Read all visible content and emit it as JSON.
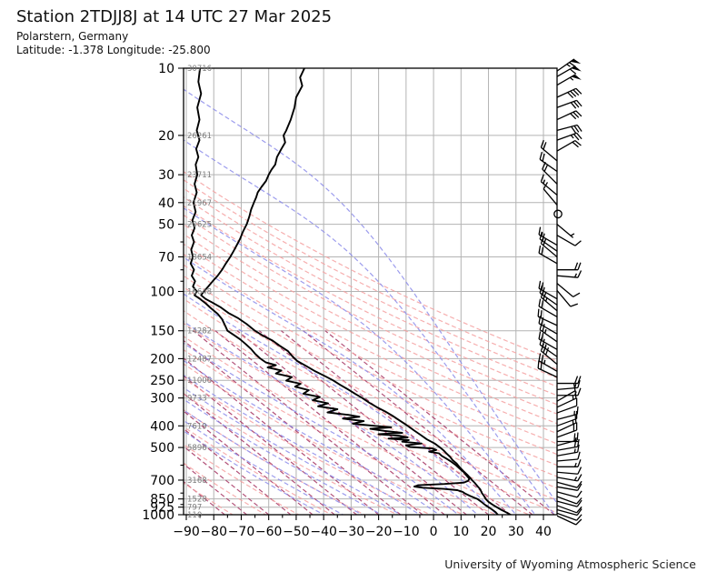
{
  "header": {
    "title": "Station 2TDJJ8J at 14 UTC 27 Mar 2025",
    "station_line": "Polarstern, Germany",
    "coords_line": "Latitude: -1.378 Longitude: -25.800"
  },
  "footer": {
    "credit": "University of Wyoming Atmospheric Science"
  },
  "chart_data": {
    "type": "line",
    "title": "Station 2TDJJ8J at 14 UTC 27 Mar 2025",
    "x_axis": {
      "unit": "degC",
      "range": [
        -90.99,
        45
      ],
      "ticks": [
        -90,
        -80,
        -70,
        -60,
        -50,
        -40,
        -30,
        -20,
        -10,
        0,
        10,
        20,
        30,
        40
      ],
      "tick_labels": [
        "−90",
        "−80",
        "−70",
        "−60",
        "−50",
        "−40",
        "−30",
        "−20",
        "−10",
        "0",
        "10",
        "20",
        "30",
        "40"
      ],
      "minor_step": 5
    },
    "y_axis": {
      "scale": "log",
      "unit": "hPa",
      "range": [
        10,
        1050
      ],
      "levels": [
        {
          "p": 10,
          "alt": "30716"
        },
        {
          "p": 20,
          "alt": "26261"
        },
        {
          "p": 30,
          "alt": "23711"
        },
        {
          "p": 40,
          "alt": "21967"
        },
        {
          "p": 50,
          "alt": "20625"
        },
        {
          "p": 70,
          "alt": "18654"
        },
        {
          "p": 100,
          "alt": "16648"
        },
        {
          "p": 150,
          "alt": "14282"
        },
        {
          "p": 200,
          "alt": "12487"
        },
        {
          "p": 250,
          "alt": "11006"
        },
        {
          "p": 300,
          "alt": "9733"
        },
        {
          "p": 400,
          "alt": "7619"
        },
        {
          "p": 500,
          "alt": "5896"
        },
        {
          "p": 700,
          "alt": "3168"
        },
        {
          "p": 850,
          "alt": "1528"
        },
        {
          "p": 925,
          "alt": "797"
        },
        {
          "p": 1000,
          "alt": "110"
        }
      ],
      "minor_ticks": [
        60,
        80,
        90,
        600,
        800,
        900
      ]
    },
    "colors": {
      "grid": "#b3b3b3",
      "axis": "#000000",
      "temperature": "#000000",
      "dewpoint": "#000000",
      "dry_adiabat": "#f4a0a0",
      "moist_adiabat": "#8b8bea",
      "aux_line": "#a83c68"
    },
    "series": [
      {
        "name": "temperature",
        "color": "#000000",
        "points": [
          [
            10,
            -47
          ],
          [
            11,
            -48.6
          ],
          [
            12,
            -47.8
          ],
          [
            13.5,
            -50
          ],
          [
            15,
            -50.6
          ],
          [
            17,
            -52
          ],
          [
            19,
            -53.6
          ],
          [
            20,
            -54.6
          ],
          [
            21.5,
            -54
          ],
          [
            23,
            -55.4
          ],
          [
            25,
            -57
          ],
          [
            27,
            -57.6
          ],
          [
            28.5,
            -59
          ],
          [
            30,
            -60
          ],
          [
            32,
            -61
          ],
          [
            34,
            -62.6
          ],
          [
            36,
            -64
          ],
          [
            38,
            -64.6
          ],
          [
            40,
            -65.4
          ],
          [
            43,
            -66.4
          ],
          [
            46,
            -67
          ],
          [
            50,
            -68
          ],
          [
            54,
            -69.4
          ],
          [
            58,
            -70.4
          ],
          [
            62,
            -71.6
          ],
          [
            66,
            -72.8
          ],
          [
            70,
            -74
          ],
          [
            75,
            -75.6
          ],
          [
            80,
            -77
          ],
          [
            85,
            -78.6
          ],
          [
            90,
            -80.4
          ],
          [
            95,
            -82
          ],
          [
            100,
            -83.6
          ],
          [
            104,
            -84.6
          ],
          [
            108,
            -83
          ],
          [
            112,
            -80.6
          ],
          [
            118,
            -77.4
          ],
          [
            125,
            -74.6
          ],
          [
            132,
            -71
          ],
          [
            140,
            -68
          ],
          [
            150,
            -65
          ],
          [
            158,
            -62
          ],
          [
            166,
            -58.6
          ],
          [
            175,
            -56
          ],
          [
            185,
            -53
          ],
          [
            195,
            -51.4
          ],
          [
            205,
            -49.6
          ],
          [
            215,
            -46.6
          ],
          [
            228,
            -43
          ],
          [
            240,
            -39.4
          ],
          [
            250,
            -36.6
          ],
          [
            262,
            -34
          ],
          [
            275,
            -31
          ],
          [
            288,
            -28.4
          ],
          [
            300,
            -26
          ],
          [
            315,
            -23.4
          ],
          [
            330,
            -20.6
          ],
          [
            345,
            -17.6
          ],
          [
            360,
            -15
          ],
          [
            378,
            -12.4
          ],
          [
            400,
            -9.4
          ],
          [
            420,
            -7
          ],
          [
            440,
            -4.6
          ],
          [
            460,
            -2.4
          ],
          [
            480,
            0.4
          ],
          [
            500,
            2.4
          ],
          [
            515,
            3.6
          ],
          [
            530,
            4.6
          ],
          [
            550,
            6
          ],
          [
            570,
            7
          ],
          [
            590,
            8.4
          ],
          [
            615,
            9.6
          ],
          [
            640,
            11
          ],
          [
            665,
            12.4
          ],
          [
            690,
            13.6
          ],
          [
            700,
            14
          ],
          [
            720,
            15
          ],
          [
            745,
            16
          ],
          [
            770,
            17
          ],
          [
            800,
            17.6
          ],
          [
            825,
            18.4
          ],
          [
            850,
            19
          ],
          [
            875,
            20
          ],
          [
            900,
            21.4
          ],
          [
            925,
            23
          ],
          [
            950,
            24.6
          ],
          [
            975,
            26.4
          ],
          [
            1000,
            28
          ],
          [
            1008,
            28.6
          ]
        ]
      },
      {
        "name": "dewpoint",
        "color": "#000000",
        "points": [
          [
            10,
            -85
          ],
          [
            11.5,
            -85.6
          ],
          [
            13,
            -84.6
          ],
          [
            15,
            -86
          ],
          [
            17,
            -85.2
          ],
          [
            19,
            -86.2
          ],
          [
            21,
            -85.2
          ],
          [
            23,
            -86.4
          ],
          [
            25,
            -85.6
          ],
          [
            27,
            -86.6
          ],
          [
            30,
            -86
          ],
          [
            33,
            -87
          ],
          [
            36,
            -86.2
          ],
          [
            40,
            -87.4
          ],
          [
            44,
            -86.6
          ],
          [
            48,
            -87.8
          ],
          [
            52,
            -87
          ],
          [
            56,
            -88
          ],
          [
            60,
            -87.2
          ],
          [
            65,
            -88.2
          ],
          [
            70,
            -87.6
          ],
          [
            75,
            -88.4
          ],
          [
            80,
            -87.2
          ],
          [
            85,
            -88
          ],
          [
            90,
            -86.8
          ],
          [
            95,
            -87.6
          ],
          [
            100,
            -86.2
          ],
          [
            104,
            -87
          ],
          [
            108,
            -85
          ],
          [
            113,
            -83
          ],
          [
            119,
            -81
          ],
          [
            126,
            -78.6
          ],
          [
            133,
            -77
          ],
          [
            141,
            -76
          ],
          [
            150,
            -75
          ],
          [
            157,
            -72.6
          ],
          [
            164,
            -70.4
          ],
          [
            172,
            -68.4
          ],
          [
            181,
            -66.4
          ],
          [
            190,
            -65
          ],
          [
            200,
            -63
          ],
          [
            208,
            -61
          ],
          [
            214,
            -57.4
          ],
          [
            219,
            -60.4
          ],
          [
            226,
            -55.4
          ],
          [
            233,
            -57.4
          ],
          [
            242,
            -51.6
          ],
          [
            251,
            -53.6
          ],
          [
            259,
            -48.4
          ],
          [
            267,
            -50.4
          ],
          [
            277,
            -45.4
          ],
          [
            287,
            -47.4
          ],
          [
            297,
            -41.4
          ],
          [
            307,
            -44
          ],
          [
            317,
            -38.4
          ],
          [
            327,
            -42
          ],
          [
            337,
            -35
          ],
          [
            348,
            -38.6
          ],
          [
            357,
            -31
          ],
          [
            364,
            -27
          ],
          [
            371,
            -33
          ],
          [
            381,
            -25.4
          ],
          [
            391,
            -29.4
          ],
          [
            400,
            -21.4
          ],
          [
            406,
            -15.4
          ],
          [
            412,
            -23
          ],
          [
            421,
            -18
          ],
          [
            430,
            -11.4
          ],
          [
            436,
            -20
          ],
          [
            443,
            -12.4
          ],
          [
            450,
            -9.4
          ],
          [
            456,
            -16.4
          ],
          [
            463,
            -9
          ],
          [
            471,
            -11.4
          ],
          [
            480,
            -4.4
          ],
          [
            489,
            -10
          ],
          [
            497,
            -8.6
          ],
          [
            505,
            -0.4
          ],
          [
            513,
            1
          ],
          [
            522,
            -1.6
          ],
          [
            531,
            2
          ],
          [
            545,
            3
          ],
          [
            560,
            4.6
          ],
          [
            578,
            6.4
          ],
          [
            598,
            8
          ],
          [
            620,
            9.4
          ],
          [
            645,
            11
          ],
          [
            668,
            12
          ],
          [
            690,
            13
          ],
          [
            705,
            12.6
          ],
          [
            718,
            11
          ],
          [
            728,
            4
          ],
          [
            738,
            -5.6
          ],
          [
            748,
            -7
          ],
          [
            757,
            -4
          ],
          [
            766,
            3.6
          ],
          [
            776,
            8.6
          ],
          [
            790,
            10.6
          ],
          [
            805,
            11.6
          ],
          [
            825,
            13.4
          ],
          [
            850,
            16
          ],
          [
            875,
            17.4
          ],
          [
            900,
            18.6
          ],
          [
            925,
            20
          ],
          [
            950,
            21.4
          ],
          [
            975,
            22.6
          ],
          [
            1000,
            23.4
          ],
          [
            1008,
            23.6
          ]
        ]
      }
    ],
    "background_lines": {
      "dry_adiabats": {
        "theta_K": [
          200,
          212,
          224,
          236,
          248,
          260,
          272,
          284,
          296,
          308,
          320,
          332,
          344,
          356,
          368,
          380,
          392,
          404,
          416,
          428,
          440,
          452,
          464,
          476,
          488,
          500
        ]
      },
      "moist_adiabats": {
        "start_temps_C": [
          -40,
          -33,
          -26,
          -19,
          -12,
          -5,
          2,
          9,
          16,
          23,
          30,
          37,
          44,
          48
        ]
      },
      "aux_lines": {
        "start_temps_C": [
          -76,
          -68,
          -60,
          -52,
          -44,
          -36,
          -28,
          -20,
          -12,
          -4,
          4,
          12,
          20,
          28,
          36,
          44
        ],
        "slope_C_per_decade": 101.3,
        "p_top": 150
      }
    },
    "wind": {
      "unit": "kt",
      "calm_level_hPa": 45,
      "barbs": [
        [
          10.3,
          65,
          55
        ],
        [
          10.9,
          60,
          60
        ],
        [
          11.9,
          55,
          60
        ],
        [
          13.5,
          40,
          65
        ],
        [
          15,
          30,
          70
        ],
        [
          17,
          30,
          65
        ],
        [
          19,
          28,
          75
        ],
        [
          21,
          25,
          70
        ],
        [
          23.5,
          20,
          60
        ],
        [
          26,
          20,
          310
        ],
        [
          29,
          18,
          305
        ],
        [
          33,
          20,
          315
        ],
        [
          37,
          15,
          310
        ],
        [
          41,
          10,
          320
        ],
        [
          45,
          0,
          0
        ],
        [
          50,
          5,
          130
        ],
        [
          56,
          8,
          120
        ],
        [
          62,
          15,
          300
        ],
        [
          66,
          20,
          305
        ],
        [
          70,
          22,
          310
        ],
        [
          75,
          20,
          300
        ],
        [
          80,
          18,
          90
        ],
        [
          85,
          15,
          95
        ],
        [
          92,
          8,
          130
        ],
        [
          99,
          8,
          140
        ],
        [
          108,
          20,
          300
        ],
        [
          115,
          22,
          305
        ],
        [
          122,
          25,
          310
        ],
        [
          130,
          20,
          300
        ],
        [
          142,
          20,
          295
        ],
        [
          155,
          22,
          300
        ],
        [
          168,
          25,
          305
        ],
        [
          182,
          22,
          300
        ],
        [
          196,
          25,
          305
        ],
        [
          212,
          28,
          310
        ],
        [
          228,
          25,
          300
        ],
        [
          242,
          22,
          295
        ],
        [
          258,
          18,
          90
        ],
        [
          275,
          15,
          85
        ],
        [
          292,
          15,
          90
        ],
        [
          310,
          12,
          60
        ],
        [
          330,
          15,
          65
        ],
        [
          350,
          12,
          70
        ],
        [
          375,
          15,
          75
        ],
        [
          400,
          12,
          70
        ],
        [
          425,
          15,
          65
        ],
        [
          450,
          18,
          70
        ],
        [
          470,
          3,
          90
        ],
        [
          490,
          18,
          75
        ],
        [
          515,
          20,
          80
        ],
        [
          545,
          15,
          80
        ],
        [
          575,
          12,
          85
        ],
        [
          610,
          15,
          90
        ],
        [
          645,
          12,
          95
        ],
        [
          680,
          15,
          100
        ],
        [
          715,
          12,
          105
        ],
        [
          750,
          10,
          100
        ],
        [
          790,
          12,
          105
        ],
        [
          830,
          10,
          110
        ],
        [
          870,
          12,
          105
        ],
        [
          910,
          10,
          110
        ],
        [
          950,
          12,
          105
        ],
        [
          985,
          10,
          110
        ],
        [
          1012,
          12,
          115
        ]
      ]
    }
  }
}
